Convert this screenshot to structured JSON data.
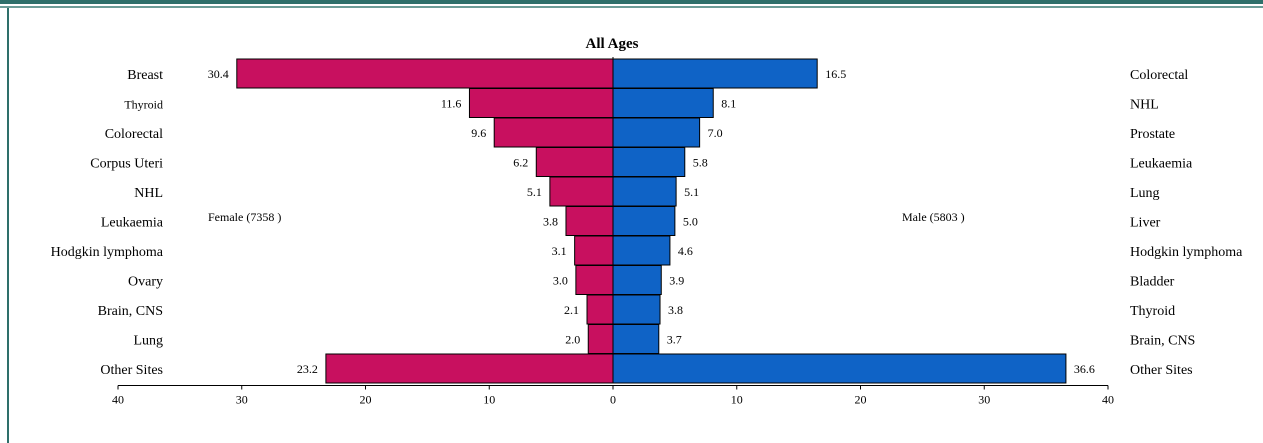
{
  "chart_data": {
    "type": "bar",
    "orientation": "horizontal-diverging",
    "title": "All Ages",
    "female": {
      "label": "Female (7358 )",
      "color": "#c8105f",
      "categories": [
        "Breast",
        "Thyroid",
        "Colorectal",
        "Corpus Uteri",
        "NHL",
        "Leukaemia",
        "Hodgkin lymphoma",
        "Ovary",
        "Brain, CNS",
        "Lung",
        "Other Sites"
      ],
      "values": [
        30.4,
        11.6,
        9.6,
        6.2,
        5.1,
        3.8,
        3.1,
        3.0,
        2.1,
        2.0,
        23.2
      ],
      "value_labels": [
        "30.4",
        "11.6",
        "9.6",
        "6.2",
        "5.1",
        "3.8",
        "3.1",
        "3.0",
        "2.1",
        "2.0",
        "23.2"
      ]
    },
    "male": {
      "label": "Male (5803 )",
      "color": "#0f63c6",
      "categories": [
        "Colorectal",
        "NHL",
        "Prostate",
        "Leukaemia",
        "Lung",
        "Liver",
        "Hodgkin lymphoma",
        "Bladder",
        "Thyroid",
        "Brain, CNS",
        "Other Sites"
      ],
      "values": [
        16.5,
        8.1,
        7.0,
        5.8,
        5.1,
        5.0,
        4.6,
        3.9,
        3.8,
        3.7,
        36.6
      ],
      "value_labels": [
        "16.5",
        "8.1",
        "7.0",
        "5.8",
        "5.1",
        "5.0",
        "4.6",
        "3.9",
        "3.8",
        "3.7",
        "36.6"
      ]
    },
    "xlim": [
      -40,
      40
    ],
    "x_ticks": [
      -40,
      -30,
      -20,
      -10,
      0,
      10,
      20,
      30,
      40
    ],
    "x_tick_labels": [
      "40",
      "30",
      "20",
      "10",
      "0",
      "10",
      "20",
      "30",
      "40"
    ],
    "grid": false
  }
}
